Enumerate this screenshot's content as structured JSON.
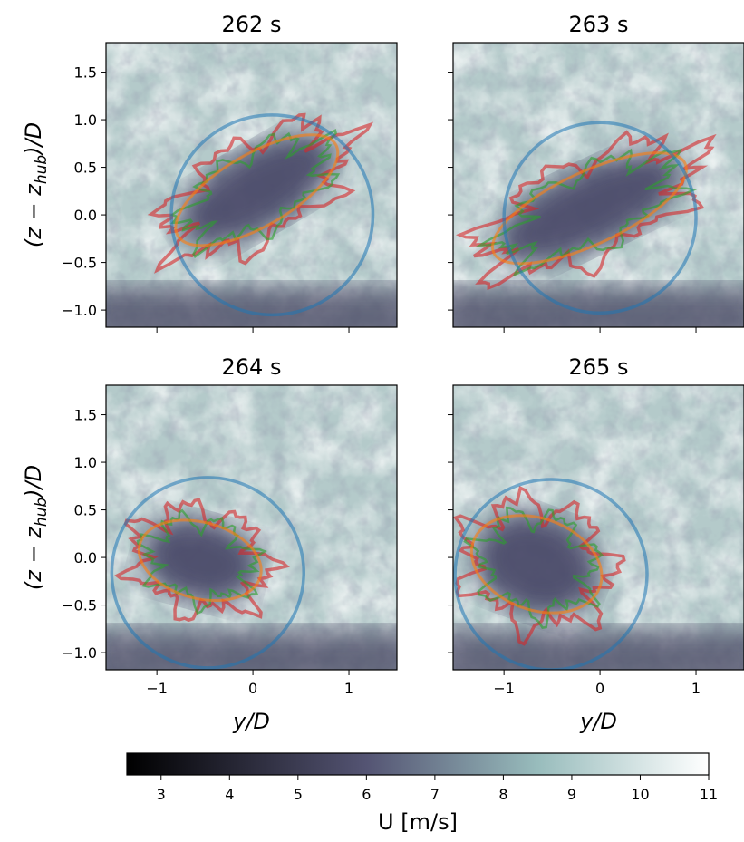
{
  "chart_data": [
    {
      "type": "image",
      "title": "262 s",
      "xlim": [
        -1.53,
        1.5
      ],
      "ylim": [
        -1.18,
        1.81
      ],
      "xticks": [
        -1,
        0,
        1
      ],
      "yticks": [
        {
          "value": -1.0,
          "label": "−1.0"
        },
        {
          "value": -0.5,
          "label": "−0.5"
        },
        {
          "value": 0.0,
          "label": "0.0"
        },
        {
          "value": 0.5,
          "label": "0.5"
        },
        {
          "value": 1.0,
          "label": "1.0"
        },
        {
          "value": 1.5,
          "label": "1.5"
        }
      ],
      "ylabel": [
        "(z − z",
        "hub",
        ")/D"
      ],
      "circle": {
        "center": [
          0.2,
          0.0
        ],
        "radius": 1.05,
        "color": "#1f77b4"
      },
      "ellipse": {
        "center": [
          0.04,
          0.26
        ],
        "semi_axes": [
          0.95,
          0.38
        ],
        "angle": 30,
        "color": "#ff7f0e"
      }
    },
    {
      "type": "image",
      "title": "263 s",
      "xlim": [
        -1.53,
        1.5
      ],
      "ylim": [
        -1.18,
        1.81
      ],
      "xticks": [
        -1,
        0,
        1
      ],
      "yticks": [
        -1.0,
        -0.5,
        0.0,
        0.5,
        1.0,
        1.5
      ],
      "circle": {
        "center": [
          0.0,
          -0.03
        ],
        "radius": 1.0,
        "color": "#1f77b4"
      },
      "ellipse": {
        "center": [
          -0.11,
          0.07
        ],
        "semi_axes": [
          1.1,
          0.38
        ],
        "angle": 25,
        "color": "#ff7f0e"
      }
    },
    {
      "type": "image",
      "title": "264 s",
      "xlim": [
        -1.53,
        1.5
      ],
      "ylim": [
        -1.18,
        1.81
      ],
      "xticks": [
        {
          "value": -1,
          "label": "−1"
        },
        0,
        1
      ],
      "yticks": [
        {
          "value": -1.0,
          "label": "−1.0"
        },
        {
          "value": -0.5,
          "label": "−0.5"
        },
        {
          "value": 0.0,
          "label": "0.0"
        },
        {
          "value": 0.5,
          "label": "0.5"
        },
        {
          "value": 1.0,
          "label": "1.0"
        },
        {
          "value": 1.5,
          "label": "1.5"
        }
      ],
      "xlabel": "y/D",
      "ylabel": [
        "(z − z",
        "hub",
        ")/D"
      ],
      "circle": {
        "center": [
          -0.47,
          -0.16
        ],
        "radius": 1.0,
        "color": "#1f77b4"
      },
      "ellipse": {
        "center": [
          -0.55,
          -0.03
        ],
        "semi_axes": [
          0.65,
          0.4
        ],
        "angle": -15,
        "color": "#ff7f0e"
      }
    },
    {
      "type": "image",
      "title": "265 s",
      "xlim": [
        -1.53,
        1.5
      ],
      "ylim": [
        -1.18,
        1.81
      ],
      "xticks": [
        {
          "value": -1,
          "label": "−1"
        },
        0,
        1
      ],
      "yticks": [
        -1.0,
        -0.5,
        0.0,
        0.5,
        1.0,
        1.5
      ],
      "xlabel": "y/D",
      "circle": {
        "center": [
          -0.51,
          -0.18
        ],
        "radius": 1.0,
        "color": "#1f77b4"
      },
      "ellipse": {
        "center": [
          -0.66,
          -0.07
        ],
        "semi_axes": [
          0.7,
          0.48
        ],
        "angle": -20,
        "color": "#ff7f0e"
      }
    }
  ],
  "contour_colors": [
    "#d62728",
    "#2ca02c"
  ],
  "colorbar": {
    "label": "U [m/s]",
    "clim": [
      2.5,
      11
    ],
    "ticks": [
      3,
      4,
      5,
      6,
      7,
      8,
      9,
      10,
      11
    ],
    "colormap": [
      {
        "value": 2.5,
        "color": "#000000"
      },
      {
        "value": 6,
        "color": "#545473"
      },
      {
        "value": 8.5,
        "color": "#98bcbc"
      },
      {
        "value": 11,
        "color": "#ffffff"
      }
    ]
  }
}
